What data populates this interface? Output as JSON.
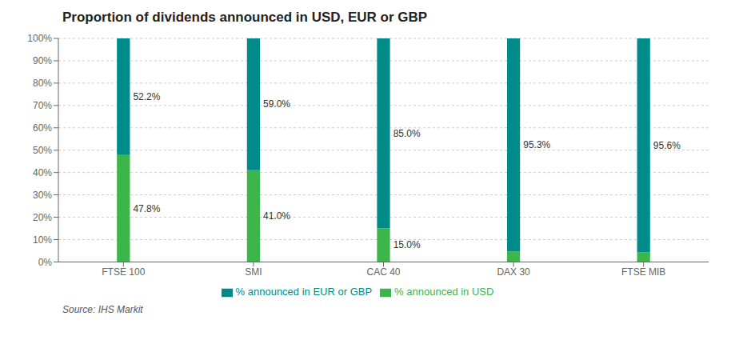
{
  "chart_data": {
    "type": "bar",
    "title": "Proportion of dividends announced in USD, EUR or GBP",
    "categories": [
      "FTSE 100",
      "SMI",
      "CAC 40",
      "DAX 30",
      "FTSE MIB"
    ],
    "series": [
      {
        "name": "% announced in USD",
        "color": "#3cb54a",
        "values": [
          47.8,
          41.0,
          15.0,
          4.7,
          4.4
        ],
        "value_labels": [
          "47.8%",
          "41.0%",
          "15.0%",
          null,
          null
        ]
      },
      {
        "name": "% announced in EUR or GBP",
        "color": "#008b8b",
        "values": [
          52.2,
          59.0,
          85.0,
          95.3,
          95.6
        ],
        "value_labels": [
          "52.2%",
          "59.0%",
          "85.0%",
          "95.3%",
          "95.6%"
        ]
      }
    ],
    "stacked": true,
    "data_labels": true,
    "ylim": [
      0,
      100
    ],
    "yticks": [
      {
        "value": 0,
        "label": "0%"
      },
      {
        "value": 10,
        "label": "10%"
      },
      {
        "value": 20,
        "label": "20%"
      },
      {
        "value": 30,
        "label": "30%"
      },
      {
        "value": 40,
        "label": "40%"
      },
      {
        "value": 50,
        "label": "50%"
      },
      {
        "value": 60,
        "label": "60%"
      },
      {
        "value": 70,
        "label": "70%"
      },
      {
        "value": 80,
        "label": "80%"
      },
      {
        "value": 90,
        "label": "90%"
      },
      {
        "value": 100,
        "label": "100%"
      }
    ],
    "grid": true,
    "legend": "bottom",
    "annotations": [
      "Source: IHS Markit"
    ]
  }
}
